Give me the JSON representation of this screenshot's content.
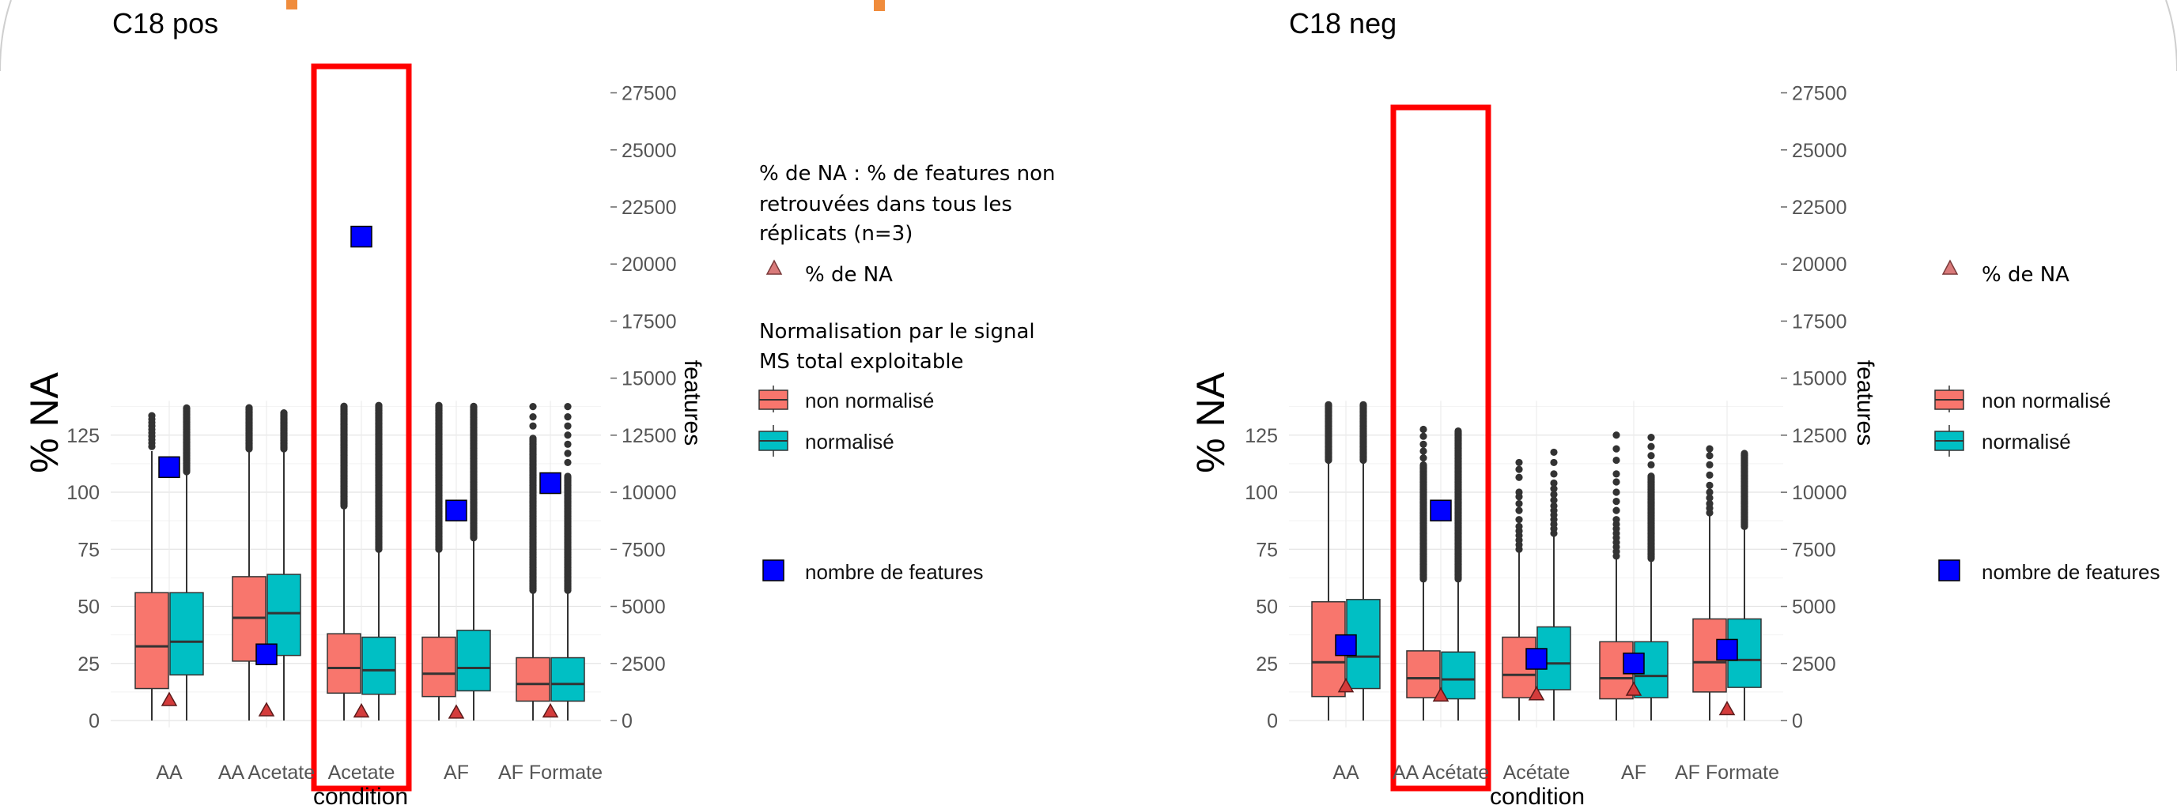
{
  "accents": {
    "orange": "#f08c3c",
    "highlight": "#ff0000",
    "count_marker": "#0000ff",
    "na_marker": "#d43b3b",
    "non_normalise": "#f8766d",
    "normalise": "#00bfc4"
  },
  "chart_data": [
    {
      "type": "boxplot",
      "title": "C18 pos",
      "xlabel": "condition",
      "ylabel": "% NA",
      "y2label": "features",
      "categories": [
        "AA",
        "AA Acetate",
        "Acetate",
        "AF",
        "AF Formate"
      ],
      "highlighted_category": "Acetate",
      "ylim": [
        -3,
        140
      ],
      "yticks": [
        0,
        25,
        50,
        75,
        100,
        125
      ],
      "y2ticks": [
        "0",
        "2500",
        "5000",
        "7500",
        "10000",
        "12500",
        "15000",
        "17500",
        "20000",
        "22500",
        "25000",
        "27500"
      ],
      "series": [
        {
          "name": "non normalisé",
          "color": "#f8766d",
          "boxes": [
            {
              "min": 0,
              "q1": 14,
              "median": 32.5,
              "q3": 56,
              "max": 118,
              "outliers": [
                120,
                121.5,
                123,
                124.5,
                126,
                127.5,
                129,
                130.5,
                132,
                133.5
              ]
            },
            {
              "min": 0,
              "q1": 26,
              "median": 45,
              "q3": 63,
              "max": 118,
              "outliers_from": 119,
              "outliers_to": 137
            },
            {
              "min": 0,
              "q1": 12,
              "median": 23,
              "q3": 38,
              "max": 93,
              "outliers_from": 94,
              "outliers_to": 138
            },
            {
              "min": 0,
              "q1": 10.5,
              "median": 20.5,
              "q3": 36.5,
              "max": 74,
              "outliers_from": 75,
              "outliers_to": 138
            },
            {
              "min": 0,
              "q1": 8.5,
              "median": 16,
              "q3": 27.5,
              "max": 56,
              "outliers_from": 57,
              "outliers_to": 124,
              "outliers": [
                129,
                133,
                137.5
              ]
            }
          ]
        },
        {
          "name": "normalisé",
          "color": "#00bfc4",
          "boxes": [
            {
              "min": 0,
              "q1": 20,
              "median": 34.5,
              "q3": 56,
              "max": 108,
              "outliers_from": 109,
              "outliers_to": 137
            },
            {
              "min": 0,
              "q1": 28.5,
              "median": 47,
              "q3": 64,
              "max": 118,
              "outliers_from": 119,
              "outliers_to": 135
            },
            {
              "min": 0,
              "q1": 11.5,
              "median": 22,
              "q3": 36.5,
              "max": 74,
              "outliers_from": 75,
              "outliers_to": 138
            },
            {
              "min": 0,
              "q1": 13,
              "median": 23,
              "q3": 39.5,
              "max": 79,
              "outliers_from": 80,
              "outliers_to": 138
            },
            {
              "min": 0,
              "q1": 8.5,
              "median": 16,
              "q3": 27.5,
              "max": 56,
              "outliers_from": 57,
              "outliers_to": 107,
              "outliers": [
                113,
                117,
                121,
                125,
                129,
                133,
                137.5
              ]
            }
          ]
        }
      ],
      "pct_na": [
        9,
        4.5,
        4,
        3.5,
        4
      ],
      "n_features": [
        11100,
        2900,
        21200,
        9200,
        10400
      ],
      "markers": {
        "triangle": "% de NA",
        "square": "nombre de features"
      }
    },
    {
      "type": "boxplot",
      "title": "C18 neg",
      "xlabel": "condition",
      "ylabel": "% NA",
      "y2label": "features",
      "categories": [
        "AA",
        "AA Acétate",
        "Acétate",
        "AF",
        "AF Formate"
      ],
      "highlighted_category": "AA Acétate",
      "ylim": [
        -3,
        140
      ],
      "yticks": [
        0,
        25,
        50,
        75,
        100,
        125
      ],
      "y2ticks": [
        "0",
        "2500",
        "5000",
        "7500",
        "10000",
        "12500",
        "15000",
        "17500",
        "20000",
        "22500",
        "25000",
        "27500"
      ],
      "series": [
        {
          "name": "non normalisé",
          "color": "#f8766d",
          "boxes": [
            {
              "min": 0,
              "q1": 10.5,
              "median": 25.5,
              "q3": 52,
              "max": 113,
              "outliers_from": 114,
              "outliers_to": 138.5
            },
            {
              "min": 0,
              "q1": 10,
              "median": 18.5,
              "q3": 30.5,
              "max": 61,
              "outliers_from": 62,
              "outliers_to": 112,
              "outliers": [
                115,
                118,
                121,
                124.5,
                127.5
              ]
            },
            {
              "min": 0,
              "q1": 10,
              "median": 20,
              "q3": 36.5,
              "max": 74,
              "outliers": [
                75,
                77,
                79,
                81,
                83,
                85,
                88,
                92,
                95,
                98,
                100,
                106.5,
                110,
                113
              ]
            },
            {
              "min": 0,
              "q1": 9.5,
              "median": 18.5,
              "q3": 34.5,
              "max": 71,
              "outliers": [
                72,
                74,
                76,
                78,
                80,
                82,
                84,
                86,
                88,
                92,
                96,
                100,
                104.5,
                108,
                114,
                119,
                125
              ]
            },
            {
              "min": 0,
              "q1": 12.5,
              "median": 25.5,
              "q3": 44.5,
              "max": 90,
              "outliers": [
                91,
                93,
                95,
                97.5,
                100,
                103,
                107.5,
                112,
                116,
                119
              ]
            }
          ]
        },
        {
          "name": "normalisé",
          "color": "#00bfc4",
          "boxes": [
            {
              "min": 0,
              "q1": 14,
              "median": 28,
              "q3": 53,
              "max": 113,
              "outliers_from": 114,
              "outliers_to": 138.5
            },
            {
              "min": 0,
              "q1": 9.5,
              "median": 18,
              "q3": 30,
              "max": 61,
              "outliers_from": 62,
              "outliers_to": 127
            },
            {
              "min": 0,
              "q1": 13.5,
              "median": 25,
              "q3": 41,
              "max": 81,
              "outliers": [
                82,
                84,
                86,
                88,
                90,
                92,
                94,
                96.5,
                99,
                101.5,
                104,
                108,
                113,
                117.5
              ]
            },
            {
              "min": 0,
              "q1": 10,
              "median": 19.5,
              "q3": 34.5,
              "max": 70,
              "outliers_from": 71,
              "outliers_to": 107,
              "outliers": [
                112,
                116,
                120,
                124
              ]
            },
            {
              "min": 0,
              "q1": 14.5,
              "median": 26.5,
              "q3": 44.5,
              "max": 84,
              "outliers_from": 85,
              "outliers_to": 117
            }
          ]
        }
      ],
      "pct_na": [
        15,
        11,
        11.5,
        13.5,
        5
      ],
      "n_features": [
        3300,
        9200,
        2700,
        2500,
        3100
      ],
      "markers": {
        "triangle": "% de NA",
        "square": "nombre de features"
      }
    }
  ],
  "legend_left": {
    "note_lines": [
      "% de NA : % de features non",
      "retrouvées dans tous les",
      "réplicats (n=3)"
    ],
    "na_label": "% de NA",
    "norm_title_lines": [
      "Normalisation par le signal",
      "MS total exploitable"
    ],
    "non_norm_label": "non normalisé",
    "norm_label": "normalisé",
    "count_label": "nombre de features"
  },
  "legend_right": {
    "na_label": "% de NA",
    "non_norm_label": "non normalisé",
    "norm_label": "normalisé",
    "count_label": "nombre de features"
  }
}
